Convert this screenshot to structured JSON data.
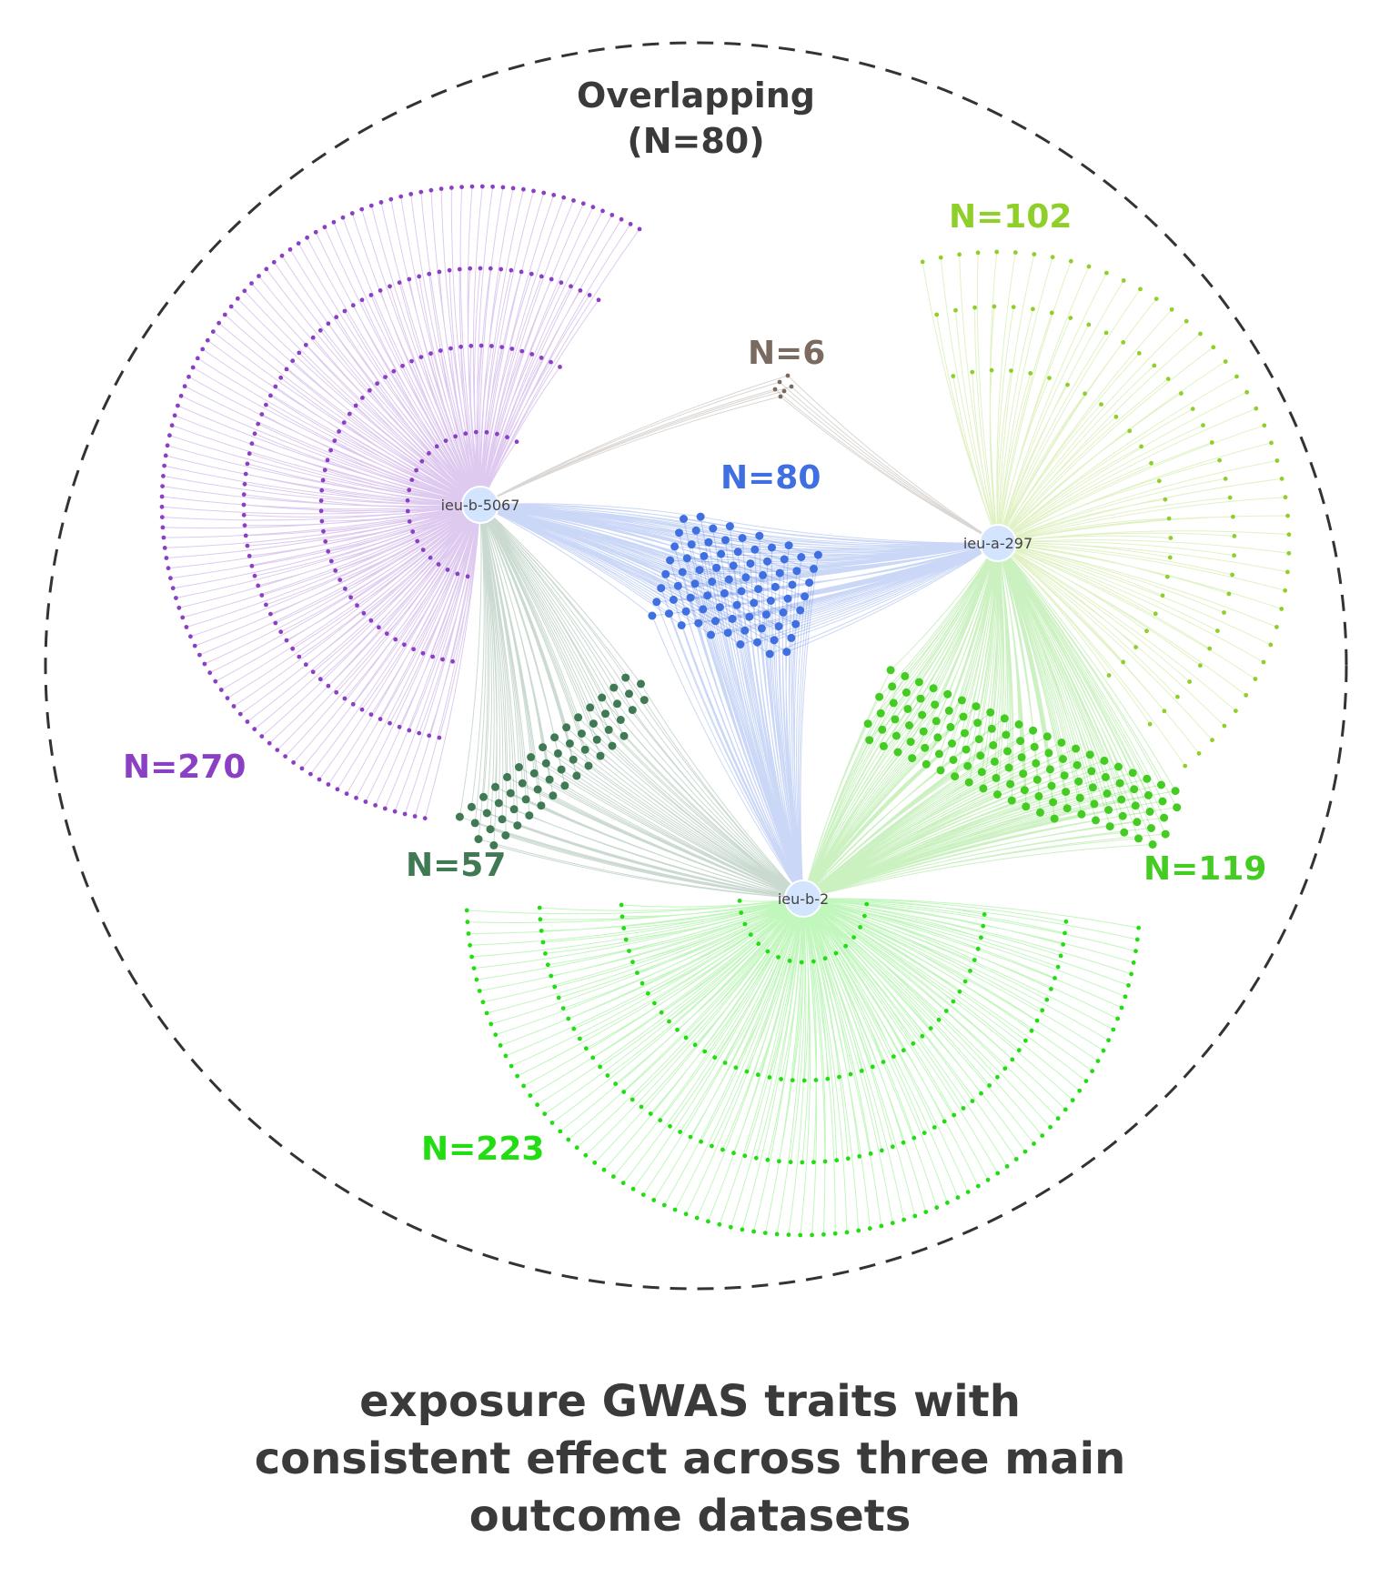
{
  "boundary": {
    "title_line1": "Overlapping",
    "title_line2": "(N=80)"
  },
  "hubs": {
    "h1": {
      "label": "ieu-b-5067"
    },
    "h2": {
      "label": "ieu-a-297"
    },
    "h3": {
      "label": "ieu-b-2"
    }
  },
  "groups": [
    {
      "id": "purple",
      "label": "N=270",
      "color": "#8a3fc4",
      "count": 270,
      "hubs": [
        "h1"
      ]
    },
    {
      "id": "lime",
      "label": "N=102",
      "color": "#8fcf2a",
      "count": 102,
      "hubs": [
        "h2"
      ]
    },
    {
      "id": "brown",
      "label": "N=6",
      "color": "#7a6a60",
      "count": 6,
      "hubs": [
        "h1",
        "h2"
      ]
    },
    {
      "id": "blue",
      "label": "N=80",
      "color": "#3f6fe0",
      "count": 80,
      "hubs": [
        "h1",
        "h2",
        "h3"
      ]
    },
    {
      "id": "darkgreen",
      "label": "N=57",
      "color": "#3f7a55",
      "count": 57,
      "hubs": [
        "h1",
        "h3"
      ]
    },
    {
      "id": "green",
      "label": "N=119",
      "color": "#44cc22",
      "count": 119,
      "hubs": [
        "h2",
        "h3"
      ]
    },
    {
      "id": "brightgreen",
      "label": "N=223",
      "color": "#22dd11",
      "count": 223,
      "hubs": [
        "h3"
      ]
    }
  ],
  "caption": {
    "line1": "exposure GWAS traits with",
    "line2": "consistent effect across three main",
    "line3": "outcome datasets"
  }
}
